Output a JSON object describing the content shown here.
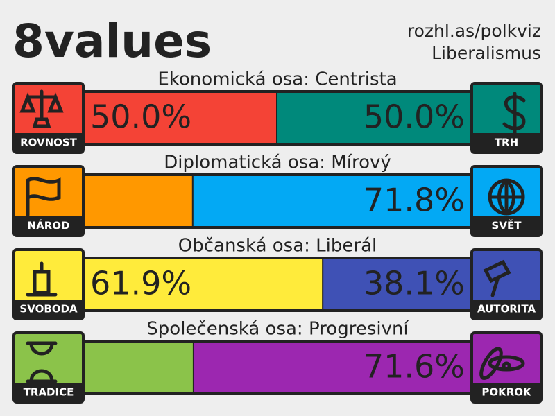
{
  "header": {
    "title": "8values",
    "url": "rozhl.as/polkviz",
    "ideology": "Liberalismus"
  },
  "chart_data": [
    {
      "type": "bar",
      "title": "Ekonomická osa: Centrista",
      "xlim": [
        0,
        100
      ],
      "series": [
        {
          "name": "ROVNOST",
          "color": "#f44336",
          "values": [
            50.0
          ],
          "value_labels": [
            "50.0%"
          ]
        },
        {
          "name": "TRH",
          "color": "#00897b",
          "values": [
            50.0
          ],
          "value_labels": [
            "50.0%"
          ]
        }
      ]
    },
    {
      "type": "bar",
      "title": "Diplomatická osa: Mírový",
      "xlim": [
        0,
        100
      ],
      "series": [
        {
          "name": "NÁROD",
          "color": "#ff9800",
          "values": [
            28.2
          ]
        },
        {
          "name": "SVĚT",
          "color": "#03a9f4",
          "values": [
            71.8
          ],
          "value_labels": [
            "71.8%"
          ]
        }
      ]
    },
    {
      "type": "bar",
      "title": "Občanská osa: Liberál",
      "xlim": [
        0,
        100
      ],
      "series": [
        {
          "name": "SVOBODA",
          "color": "#ffeb3b",
          "values": [
            61.9
          ],
          "value_labels": [
            "61.9%"
          ]
        },
        {
          "name": "AUTORITA",
          "color": "#3f51b5",
          "values": [
            38.1
          ],
          "value_labels": [
            "38.1%"
          ]
        }
      ]
    },
    {
      "type": "bar",
      "title": "Společenská osa: Progresivní",
      "xlim": [
        0,
        100
      ],
      "series": [
        {
          "name": "TRADICE",
          "color": "#8bc34a",
          "values": [
            28.4
          ]
        },
        {
          "name": "POKROK",
          "color": "#9c27b0",
          "values": [
            71.6
          ],
          "value_labels": [
            "71.6%"
          ]
        }
      ]
    }
  ]
}
